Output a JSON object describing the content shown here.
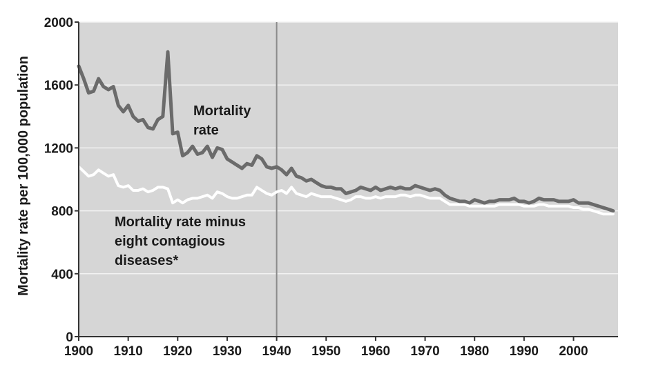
{
  "chart_data": {
    "type": "line",
    "title": "",
    "xlabel": "",
    "ylabel": "Mortality rate per 100,000 population",
    "xlim": [
      1900,
      2009
    ],
    "ylim": [
      0,
      2000
    ],
    "x_ticks": [
      1900,
      1910,
      1920,
      1930,
      1940,
      1950,
      1960,
      1970,
      1980,
      1990,
      2000
    ],
    "y_ticks": [
      0,
      400,
      800,
      1200,
      1600,
      2000
    ],
    "grid": true,
    "reference_line": {
      "x": 1940
    },
    "series": [
      {
        "name": "Mortality rate",
        "color": "#6b6b6b",
        "x": [
          1900,
          1901,
          1902,
          1903,
          1904,
          1905,
          1906,
          1907,
          1908,
          1909,
          1910,
          1911,
          1912,
          1913,
          1914,
          1915,
          1916,
          1917,
          1918,
          1919,
          1920,
          1921,
          1922,
          1923,
          1924,
          1925,
          1926,
          1927,
          1928,
          1929,
          1930,
          1931,
          1932,
          1933,
          1934,
          1935,
          1936,
          1937,
          1938,
          1939,
          1940,
          1941,
          1942,
          1943,
          1944,
          1945,
          1946,
          1947,
          1948,
          1949,
          1950,
          1951,
          1952,
          1953,
          1954,
          1955,
          1956,
          1957,
          1958,
          1959,
          1960,
          1961,
          1962,
          1963,
          1964,
          1965,
          1966,
          1967,
          1968,
          1969,
          1970,
          1971,
          1972,
          1973,
          1974,
          1975,
          1976,
          1977,
          1978,
          1979,
          1980,
          1981,
          1982,
          1983,
          1984,
          1985,
          1986,
          1987,
          1988,
          1989,
          1990,
          1991,
          1992,
          1993,
          1994,
          1995,
          1996,
          1997,
          1998,
          1999,
          2000,
          2001,
          2002,
          2003,
          2004,
          2005,
          2006,
          2007,
          2008
        ],
        "values": [
          1720,
          1640,
          1550,
          1560,
          1640,
          1590,
          1570,
          1590,
          1470,
          1430,
          1470,
          1400,
          1370,
          1380,
          1330,
          1320,
          1380,
          1400,
          1810,
          1290,
          1300,
          1150,
          1170,
          1210,
          1160,
          1170,
          1210,
          1140,
          1200,
          1190,
          1130,
          1110,
          1090,
          1070,
          1100,
          1090,
          1150,
          1130,
          1080,
          1070,
          1080,
          1060,
          1030,
          1070,
          1020,
          1010,
          990,
          1000,
          980,
          960,
          950,
          950,
          940,
          940,
          910,
          920,
          930,
          950,
          940,
          930,
          950,
          930,
          940,
          950,
          940,
          950,
          940,
          940,
          960,
          950,
          940,
          930,
          940,
          930,
          900,
          880,
          870,
          860,
          860,
          850,
          870,
          860,
          850,
          860,
          860,
          870,
          870,
          870,
          880,
          860,
          860,
          850,
          860,
          880,
          870,
          870,
          870,
          860,
          860,
          860,
          870,
          850,
          850,
          850,
          840,
          830,
          820,
          810,
          800
        ]
      },
      {
        "name": "Mortality rate minus eight contagious diseases*",
        "color": "#ffffff",
        "x": [
          1900,
          1901,
          1902,
          1903,
          1904,
          1905,
          1906,
          1907,
          1908,
          1909,
          1910,
          1911,
          1912,
          1913,
          1914,
          1915,
          1916,
          1917,
          1918,
          1919,
          1920,
          1921,
          1922,
          1923,
          1924,
          1925,
          1926,
          1927,
          1928,
          1929,
          1930,
          1931,
          1932,
          1933,
          1934,
          1935,
          1936,
          1937,
          1938,
          1939,
          1940,
          1941,
          1942,
          1943,
          1944,
          1945,
          1946,
          1947,
          1948,
          1949,
          1950,
          1951,
          1952,
          1953,
          1954,
          1955,
          1956,
          1957,
          1958,
          1959,
          1960,
          1961,
          1962,
          1963,
          1964,
          1965,
          1966,
          1967,
          1968,
          1969,
          1970,
          1971,
          1972,
          1973,
          1974,
          1975,
          1976,
          1977,
          1978,
          1979,
          1980,
          1981,
          1982,
          1983,
          1984,
          1985,
          1986,
          1987,
          1988,
          1989,
          1990,
          1991,
          1992,
          1993,
          1994,
          1995,
          1996,
          1997,
          1998,
          1999,
          2000,
          2001,
          2002,
          2003,
          2004,
          2005,
          2006,
          2007,
          2008
        ],
        "values": [
          1080,
          1050,
          1020,
          1030,
          1060,
          1040,
          1020,
          1030,
          960,
          950,
          960,
          930,
          930,
          940,
          920,
          930,
          950,
          950,
          940,
          850,
          870,
          850,
          870,
          880,
          880,
          890,
          900,
          880,
          920,
          910,
          890,
          880,
          880,
          890,
          900,
          900,
          950,
          930,
          910,
          900,
          920,
          930,
          910,
          950,
          910,
          900,
          890,
          910,
          900,
          890,
          890,
          890,
          880,
          870,
          860,
          870,
          890,
          890,
          880,
          880,
          890,
          880,
          890,
          890,
          890,
          900,
          900,
          890,
          900,
          900,
          890,
          880,
          880,
          880,
          860,
          840,
          840,
          840,
          840,
          830,
          830,
          830,
          830,
          830,
          830,
          840,
          840,
          840,
          840,
          840,
          830,
          830,
          830,
          840,
          840,
          830,
          830,
          830,
          830,
          830,
          820,
          820,
          810,
          810,
          800,
          790,
          780,
          780,
          780
        ]
      }
    ],
    "annotations": {
      "mortality_rate": [
        "Mortality",
        "rate"
      ],
      "minus_diseases": [
        "Mortality rate minus",
        "eight contagious",
        "diseases*"
      ]
    }
  }
}
